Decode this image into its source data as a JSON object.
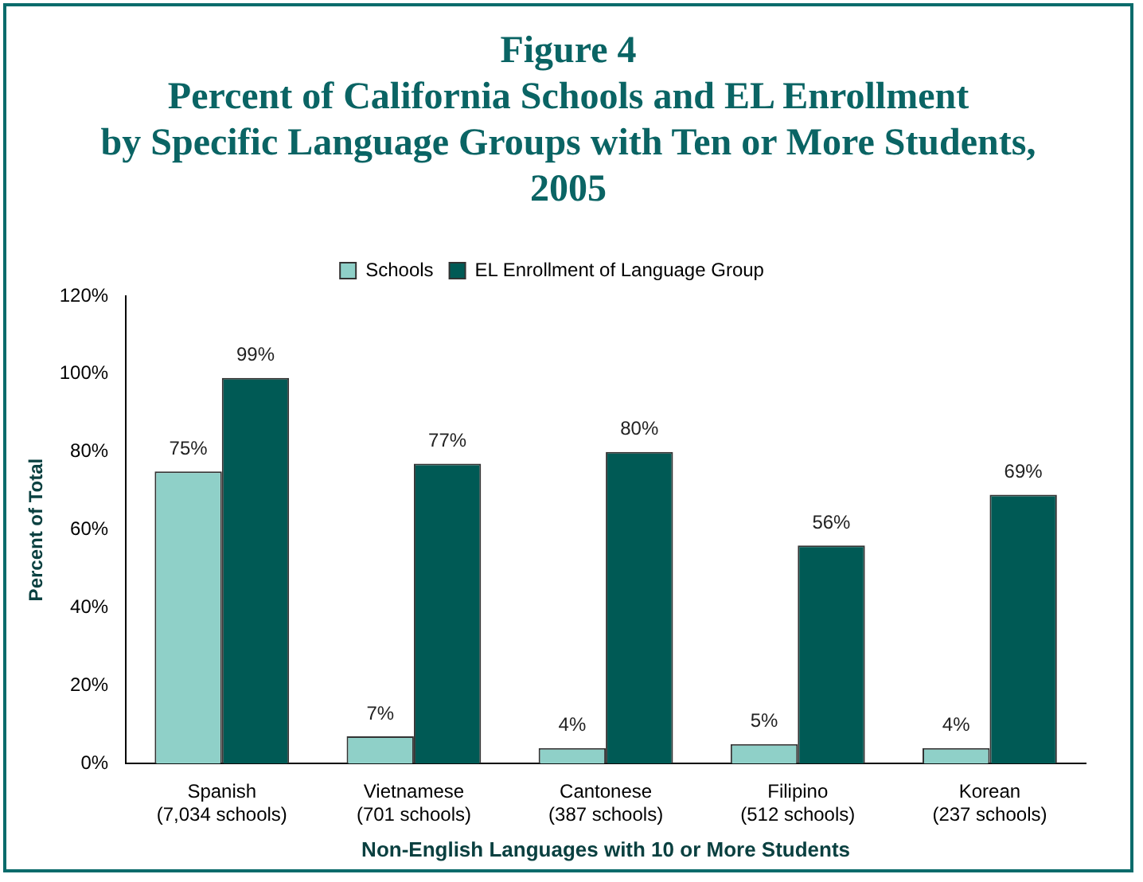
{
  "chart_data": {
    "type": "bar",
    "title": "Figure 4\nPercent of California Schools and EL Enrollment\nby Specific Language Groups with Ten or More Students,\n2005",
    "xlabel": "Non-English Languages with 10 or More Students",
    "ylabel": "Percent of Total",
    "categories": [
      "Spanish\n(7,034 schools)",
      "Vietnamese\n(701 schools)",
      "Cantonese\n(387 schools)",
      "Filipino\n(512 schools)",
      "Korean\n(237 schools)"
    ],
    "series": [
      {
        "name": "Schools",
        "color": "#8fd0c8",
        "values": [
          75,
          7,
          4,
          5,
          4
        ],
        "value_labels": [
          "75%",
          "7%",
          "4%",
          "5%",
          "4%"
        ]
      },
      {
        "name": "EL Enrollment of Language Group",
        "color": "#005a55",
        "values": [
          99,
          77,
          80,
          56,
          69
        ],
        "value_labels": [
          "99%",
          "77%",
          "80%",
          "56%",
          "69%"
        ]
      }
    ],
    "ylim": [
      0,
      120
    ],
    "yticks": [
      {
        "value": 0,
        "label": "0%"
      },
      {
        "value": 20,
        "label": "20%"
      },
      {
        "value": 40,
        "label": "40%"
      },
      {
        "value": 60,
        "label": "60%"
      },
      {
        "value": 80,
        "label": "80%"
      },
      {
        "value": 100,
        "label": "100%"
      },
      {
        "value": 120,
        "label": "120%"
      }
    ],
    "grid": false,
    "legend": "top"
  }
}
